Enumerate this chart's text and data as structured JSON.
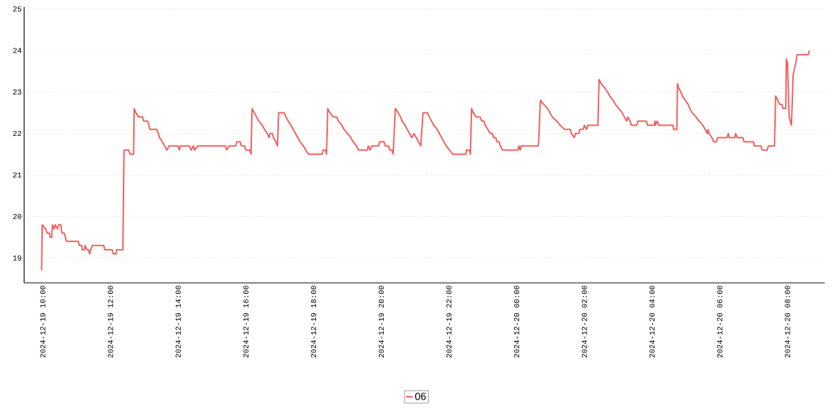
{
  "chart_data": {
    "type": "line",
    "xlim": [
      "2024-12-19T09:27",
      "2024-12-20T09:06"
    ],
    "ylim": [
      18.4,
      25.05
    ],
    "xticks": [
      {
        "value": "2024-12-19T10:00",
        "label": "2024-12-19 10:00"
      },
      {
        "value": "2024-12-19T12:00",
        "label": "2024-12-19 12:00"
      },
      {
        "value": "2024-12-19T14:00",
        "label": "2024-12-19 14:00"
      },
      {
        "value": "2024-12-19T16:00",
        "label": "2024-12-19 16:00"
      },
      {
        "value": "2024-12-19T18:00",
        "label": "2024-12-19 18:00"
      },
      {
        "value": "2024-12-19T20:00",
        "label": "2024-12-19 20:00"
      },
      {
        "value": "2024-12-19T22:00",
        "label": "2024-12-19 22:00"
      },
      {
        "value": "2024-12-20T00:00",
        "label": "2024-12-20 00:00"
      },
      {
        "value": "2024-12-20T02:00",
        "label": "2024-12-20 02:00"
      },
      {
        "value": "2024-12-20T04:00",
        "label": "2024-12-20 04:00"
      },
      {
        "value": "2024-12-20T06:00",
        "label": "2024-12-20 06:00"
      },
      {
        "value": "2024-12-20T08:00",
        "label": "2024-12-20 08:00"
      }
    ],
    "yticks": [
      19,
      20,
      21,
      22,
      23,
      24,
      25
    ],
    "grid": "y",
    "legend": "bottom",
    "marker": "none",
    "line_style": "solid",
    "series": [
      {
        "name": "06",
        "color": "#f45b5b",
        "x": [
          "2024-12-19T09:58",
          "2024-12-19T09:59",
          "2024-12-19T10:05",
          "2024-12-19T10:08",
          "2024-12-19T10:12",
          "2024-12-19T10:13",
          "2024-12-19T10:16",
          "2024-12-19T10:17",
          "2024-12-19T10:20",
          "2024-12-19T10:22",
          "2024-12-19T10:26",
          "2024-12-19T10:28",
          "2024-12-19T10:32",
          "2024-12-19T10:34",
          "2024-12-19T10:38",
          "2024-12-19T10:40",
          "2024-12-19T10:42",
          "2024-12-19T11:03",
          "2024-12-19T11:05",
          "2024-12-19T11:09",
          "2024-12-19T11:10",
          "2024-12-19T11:14",
          "2024-12-19T11:15",
          "2024-12-19T11:18",
          "2024-12-19T11:21",
          "2024-12-19T11:23",
          "2024-12-19T11:25",
          "2024-12-19T11:28",
          "2024-12-19T11:48",
          "2024-12-19T11:50",
          "2024-12-19T12:03",
          "2024-12-19T12:05",
          "2024-12-19T12:10",
          "2024-12-19T12:11",
          "2024-12-19T12:22",
          "2024-12-19T12:24",
          "2024-12-19T12:32",
          "2024-12-19T12:35",
          "2024-12-19T12:41",
          "2024-12-19T12:42",
          "2024-12-19T12:45",
          "2024-12-19T12:50",
          "2024-12-19T12:57",
          "2024-12-19T12:59",
          "2024-12-19T13:06",
          "2024-12-19T13:10",
          "2024-12-19T13:22",
          "2024-12-19T13:25",
          "2024-12-19T13:27",
          "2024-12-19T13:32",
          "2024-12-19T13:36",
          "2024-12-19T13:40",
          "2024-12-19T13:44",
          "2024-12-19T14:00",
          "2024-12-19T14:02",
          "2024-12-19T14:04",
          "2024-12-19T14:20",
          "2024-12-19T14:23",
          "2024-12-19T14:27",
          "2024-12-19T14:29",
          "2024-12-19T14:35",
          "2024-12-19T15:24",
          "2024-12-19T15:26",
          "2024-12-19T15:30",
          "2024-12-19T15:42",
          "2024-12-19T15:44",
          "2024-12-19T15:50",
          "2024-12-19T15:52",
          "2024-12-19T15:58",
          "2024-12-19T16:00",
          "2024-12-19T16:07",
          "2024-12-19T16:09",
          "2024-12-19T16:11",
          "2024-12-19T16:15",
          "2024-12-19T16:19",
          "2024-12-19T16:23",
          "2024-12-19T16:29",
          "2024-12-19T16:33",
          "2024-12-19T16:38",
          "2024-12-19T16:41",
          "2024-12-19T16:43",
          "2024-12-19T16:47",
          "2024-12-19T16:49",
          "2024-12-19T16:53",
          "2024-12-19T16:56",
          "2024-12-19T16:58",
          "2024-12-19T17:08",
          "2024-12-19T17:11",
          "2024-12-19T17:15",
          "2024-12-19T17:20",
          "2024-12-19T17:24",
          "2024-12-19T17:28",
          "2024-12-19T17:32",
          "2024-12-19T17:36",
          "2024-12-19T17:42",
          "2024-12-19T17:46",
          "2024-12-19T17:51",
          "2024-12-19T18:15",
          "2024-12-19T18:17",
          "2024-12-19T18:21",
          "2024-12-19T18:23",
          "2024-12-19T18:25",
          "2024-12-19T18:29",
          "2024-12-19T18:35",
          "2024-12-19T18:41",
          "2024-12-19T18:44",
          "2024-12-19T18:50",
          "2024-12-19T18:54",
          "2024-12-19T19:00",
          "2024-12-19T19:06",
          "2024-12-19T19:10",
          "2024-12-19T19:16",
          "2024-12-19T19:20",
          "2024-12-19T19:35",
          "2024-12-19T19:37",
          "2024-12-19T19:40",
          "2024-12-19T19:43",
          "2024-12-19T19:55",
          "2024-12-19T19:57",
          "2024-12-19T20:05",
          "2024-12-19T20:07",
          "2024-12-19T20:13",
          "2024-12-19T20:15",
          "2024-12-19T20:19",
          "2024-12-19T20:21",
          "2024-12-19T20:25",
          "2024-12-19T20:30",
          "2024-12-19T20:34",
          "2024-12-19T20:37",
          "2024-12-19T20:42",
          "2024-12-19T20:46",
          "2024-12-19T20:50",
          "2024-12-19T20:54",
          "2024-12-19T20:58",
          "2024-12-19T21:02",
          "2024-12-19T21:06",
          "2024-12-19T21:10",
          "2024-12-19T21:14",
          "2024-12-19T21:22",
          "2024-12-19T21:25",
          "2024-12-19T21:29",
          "2024-12-19T21:33",
          "2024-12-19T21:39",
          "2024-12-19T21:43",
          "2024-12-19T21:47",
          "2024-12-19T21:51",
          "2024-12-19T21:55",
          "2024-12-19T22:01",
          "2024-12-19T22:07",
          "2024-12-19T22:30",
          "2024-12-19T22:31",
          "2024-12-19T22:36",
          "2024-12-19T22:38",
          "2024-12-19T22:40",
          "2024-12-19T22:43",
          "2024-12-19T22:48",
          "2024-12-19T22:55",
          "2024-12-19T22:58",
          "2024-12-19T23:02",
          "2024-12-19T23:04",
          "2024-12-19T23:09",
          "2024-12-19T23:13",
          "2024-12-19T23:17",
          "2024-12-19T23:19",
          "2024-12-19T23:23",
          "2024-12-19T23:25",
          "2024-12-19T23:29",
          "2024-12-19T23:31",
          "2024-12-19T23:35",
          "2024-12-20T00:02",
          "2024-12-20T00:04",
          "2024-12-20T00:06",
          "2024-12-20T00:08",
          "2024-12-20T00:38",
          "2024-12-20T00:39",
          "2024-12-20T00:42",
          "2024-12-20T00:48",
          "2024-12-20T00:55",
          "2024-12-20T00:59",
          "2024-12-20T01:03",
          "2024-12-20T01:11",
          "2024-12-20T01:17",
          "2024-12-20T01:25",
          "2024-12-20T01:35",
          "2024-12-20T01:37",
          "2024-12-20T01:42",
          "2024-12-20T01:44",
          "2024-12-20T01:50",
          "2024-12-20T01:52",
          "2024-12-20T01:58",
          "2024-12-20T02:00",
          "2024-12-20T02:04",
          "2024-12-20T02:06",
          "2024-12-20T02:24",
          "2024-12-20T02:26",
          "2024-12-20T02:30",
          "2024-12-20T02:36",
          "2024-12-20T02:41",
          "2024-12-20T02:45",
          "2024-12-20T02:51",
          "2024-12-20T02:55",
          "2024-12-20T03:01",
          "2024-12-20T03:07",
          "2024-12-20T03:11",
          "2024-12-20T03:15",
          "2024-12-20T03:17",
          "2024-12-20T03:21",
          "2024-12-20T03:23",
          "2024-12-20T03:33",
          "2024-12-20T03:35",
          "2024-12-20T03:50",
          "2024-12-20T03:52",
          "2024-12-20T04:04",
          "2024-12-20T04:05",
          "2024-12-20T04:06",
          "2024-12-20T04:09",
          "2024-12-20T04:12",
          "2024-12-20T04:37",
          "2024-12-20T04:38",
          "2024-12-20T04:44",
          "2024-12-20T04:45",
          "2024-12-20T04:47",
          "2024-12-20T04:51",
          "2024-12-20T04:54",
          "2024-12-20T04:59",
          "2024-12-20T05:04",
          "2024-12-20T05:07",
          "2024-12-20T05:11",
          "2024-12-20T05:18",
          "2024-12-20T05:23",
          "2024-12-20T05:30",
          "2024-12-20T05:34",
          "2024-12-20T05:38",
          "2024-12-20T05:39",
          "2024-12-20T05:41",
          "2024-12-20T05:46",
          "2024-12-20T05:49",
          "2024-12-20T05:54",
          "2024-12-20T05:56",
          "2024-12-20T06:13",
          "2024-12-20T06:15",
          "2024-12-20T06:17",
          "2024-12-20T06:27",
          "2024-12-20T06:28",
          "2024-12-20T06:31",
          "2024-12-20T06:41",
          "2024-12-20T06:43",
          "2024-12-20T07:00",
          "2024-12-20T07:01",
          "2024-12-20T07:13",
          "2024-12-20T07:15",
          "2024-12-20T07:24",
          "2024-12-20T07:26",
          "2024-12-20T07:37",
          "2024-12-20T07:39",
          "2024-12-20T07:43",
          "2024-12-20T07:46",
          "2024-12-20T07:50",
          "2024-12-20T07:52",
          "2024-12-20T07:57",
          "2024-12-20T07:58",
          "2024-12-20T08:00",
          "2024-12-20T08:03",
          "2024-12-20T08:07",
          "2024-12-20T08:10",
          "2024-12-20T08:13",
          "2024-12-20T08:15",
          "2024-12-20T08:17",
          "2024-12-20T08:37",
          "2024-12-20T08:39"
        ],
        "values": [
          18.7,
          19.8,
          19.7,
          19.6,
          19.6,
          19.5,
          19.5,
          19.8,
          19.7,
          19.8,
          19.7,
          19.8,
          19.8,
          19.6,
          19.6,
          19.5,
          19.4,
          19.4,
          19.3,
          19.3,
          19.2,
          19.2,
          19.3,
          19.2,
          19.2,
          19.1,
          19.2,
          19.3,
          19.3,
          19.2,
          19.2,
          19.1,
          19.1,
          19.2,
          19.2,
          21.6,
          21.6,
          21.5,
          21.5,
          22.6,
          22.5,
          22.4,
          22.4,
          22.3,
          22.3,
          22.1,
          22.1,
          22.0,
          21.9,
          21.8,
          21.7,
          21.6,
          21.7,
          21.7,
          21.6,
          21.7,
          21.7,
          21.6,
          21.7,
          21.6,
          21.7,
          21.7,
          21.6,
          21.7,
          21.7,
          21.8,
          21.8,
          21.7,
          21.7,
          21.6,
          21.6,
          21.5,
          22.6,
          22.5,
          22.4,
          22.3,
          22.2,
          22.1,
          22.0,
          21.9,
          22.0,
          22.0,
          21.9,
          21.8,
          21.7,
          22.5,
          22.5,
          22.4,
          22.3,
          22.2,
          22.1,
          22.0,
          21.9,
          21.8,
          21.7,
          21.6,
          21.5,
          21.5,
          21.6,
          21.6,
          21.5,
          22.6,
          22.5,
          22.4,
          22.4,
          22.3,
          22.2,
          22.1,
          22.0,
          21.9,
          21.8,
          21.7,
          21.6,
          21.6,
          21.7,
          21.6,
          21.7,
          21.7,
          21.8,
          21.8,
          21.7,
          21.7,
          21.6,
          21.6,
          21.5,
          22.6,
          22.5,
          22.4,
          22.3,
          22.2,
          22.1,
          22.0,
          21.9,
          22.0,
          21.9,
          21.8,
          21.7,
          22.5,
          22.5,
          22.4,
          22.3,
          22.2,
          22.1,
          22.0,
          21.9,
          21.8,
          21.7,
          21.6,
          21.5,
          21.5,
          21.6,
          21.6,
          21.5,
          22.6,
          22.5,
          22.4,
          22.4,
          22.3,
          22.3,
          22.2,
          22.1,
          22.0,
          22.0,
          21.9,
          21.9,
          21.8,
          21.8,
          21.7,
          21.6,
          21.6,
          21.7,
          21.6,
          21.7,
          21.7,
          21.8,
          22.8,
          22.7,
          22.6,
          22.5,
          22.4,
          22.3,
          22.2,
          22.1,
          22.1,
          22.0,
          21.9,
          22.0,
          22.0,
          22.1,
          22.1,
          22.2,
          22.1,
          22.2,
          22.2,
          23.3,
          23.2,
          23.1,
          23.0,
          22.9,
          22.8,
          22.7,
          22.6,
          22.5,
          22.4,
          22.3,
          22.4,
          22.3,
          22.2,
          22.2,
          22.3,
          22.3,
          22.2,
          22.2,
          22.3,
          22.2,
          22.3,
          22.2,
          22.2,
          22.1,
          22.1,
          23.2,
          23.1,
          23.0,
          22.9,
          22.8,
          22.7,
          22.6,
          22.5,
          22.4,
          22.3,
          22.2,
          22.1,
          22.0,
          22.1,
          22.0,
          21.9,
          21.8,
          21.8,
          21.9,
          21.9,
          22.0,
          21.9,
          21.9,
          22.0,
          21.9,
          21.9,
          21.8,
          21.8,
          21.7,
          21.7,
          21.6,
          21.6,
          21.7,
          21.7,
          22.9,
          22.8,
          22.7,
          22.7,
          22.6,
          22.6,
          23.8,
          23.7,
          22.4,
          22.2,
          23.4,
          23.6,
          23.7,
          23.9,
          23.9,
          24.0
        ]
      }
    ]
  }
}
